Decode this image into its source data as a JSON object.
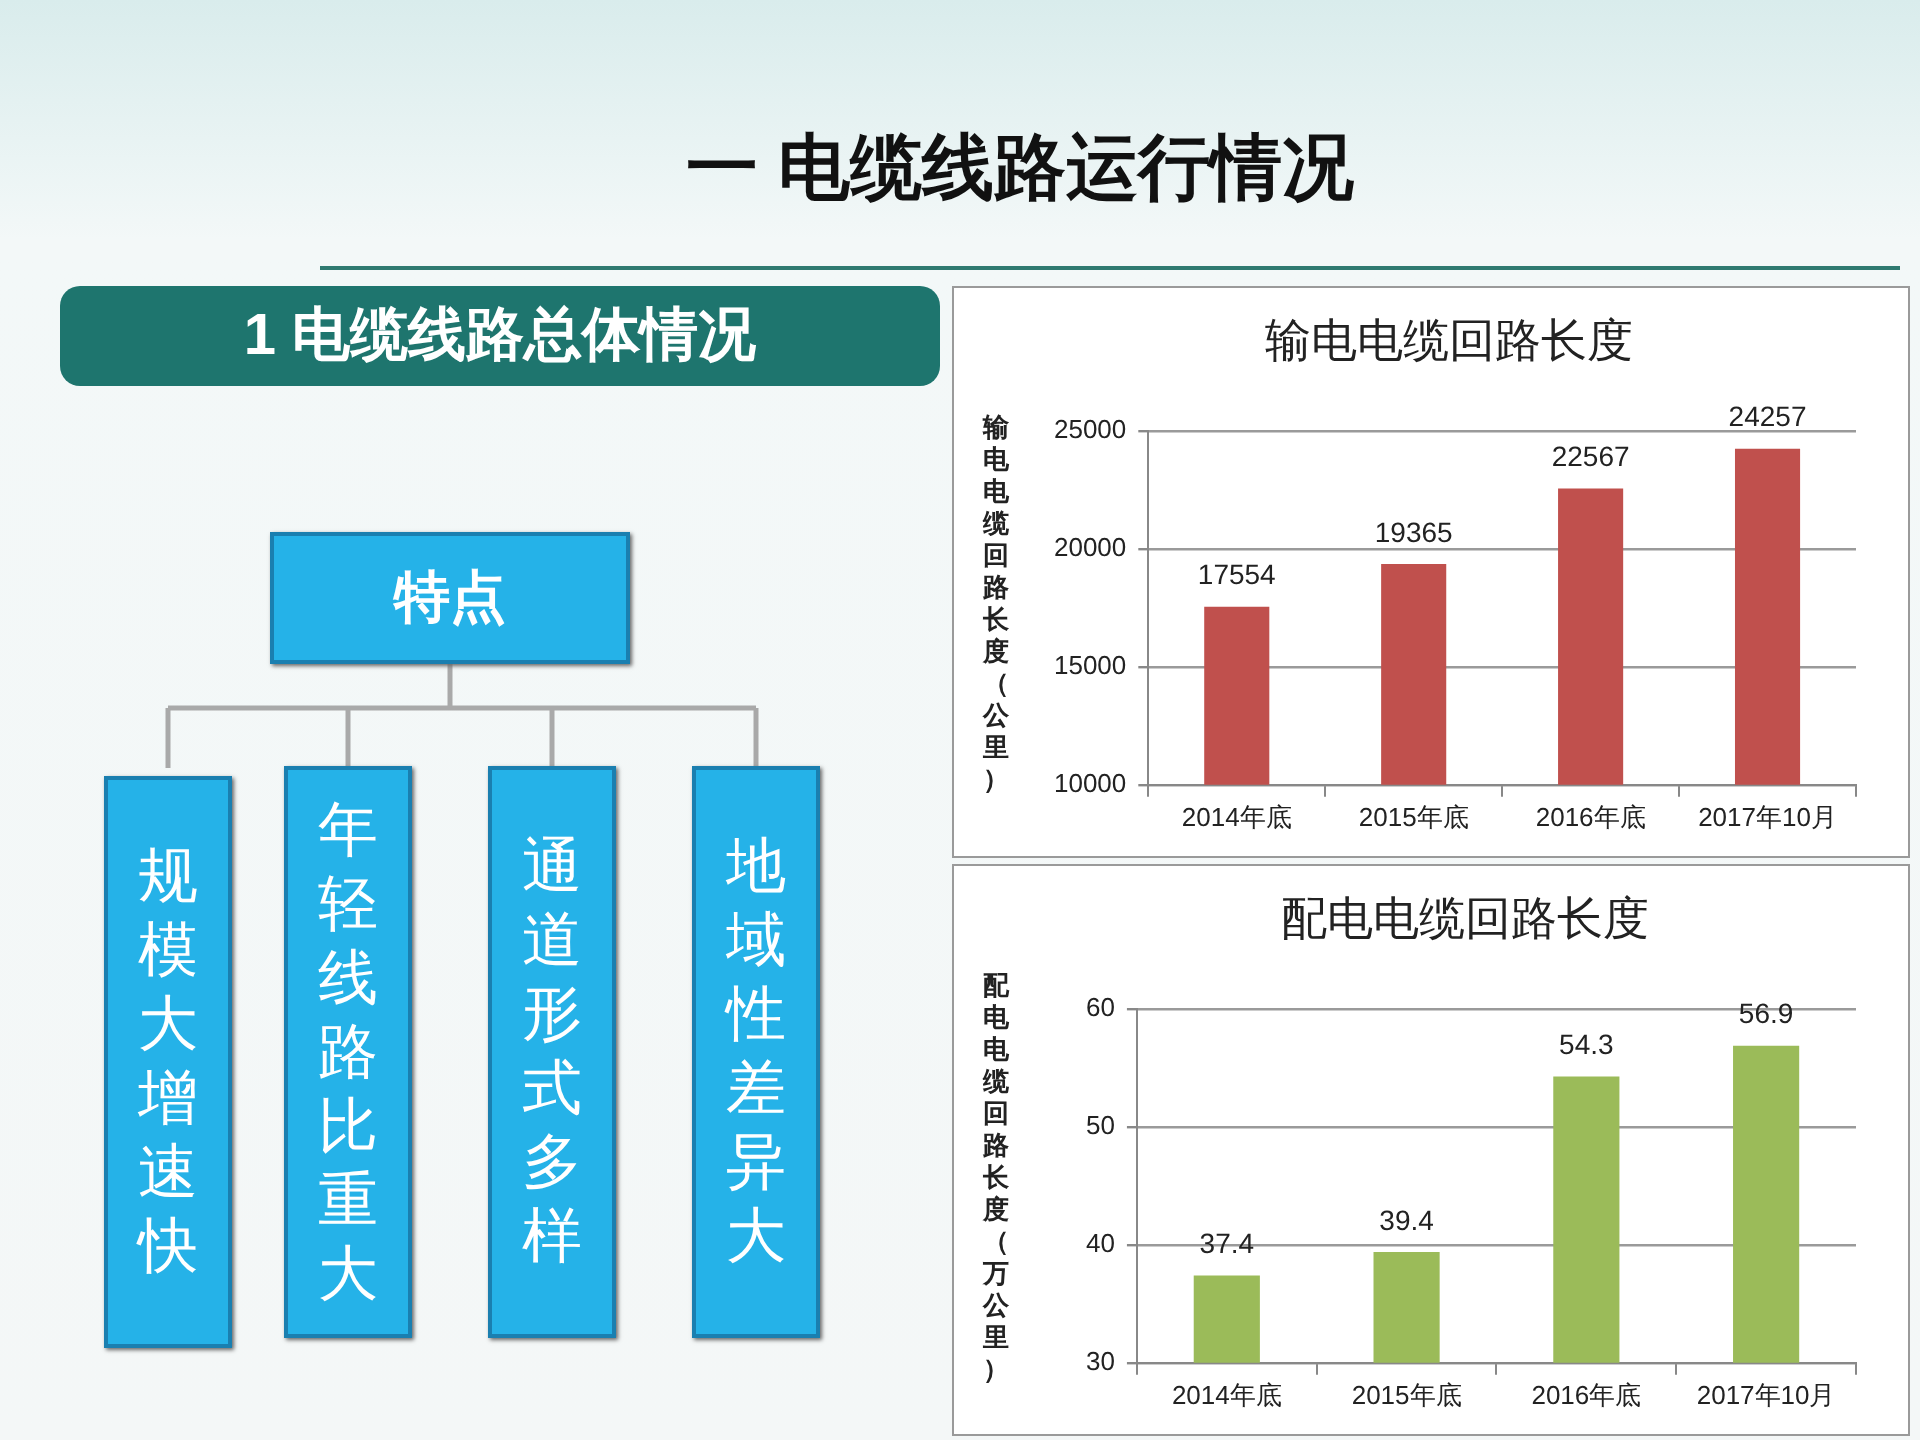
{
  "chart_data": [
    {
      "type": "other",
      "title": "一 电缆线路运行情况",
      "subtitle": "1 电缆线路总体情况",
      "annotations": [
        "特点",
        "规模大增速快",
        "年轻线路比重大",
        "通道形式多样",
        "地域性差异大"
      ]
    },
    {
      "type": "bar",
      "title": "输电电缆回路长度",
      "ylabel": "输电电缆回路长度（公里）",
      "categories": [
        "2014年底",
        "2015年底",
        "2016年底",
        "2017年10月"
      ],
      "values": [
        17554,
        19365,
        22567,
        24257
      ],
      "color": "#c0504d",
      "ylim": [
        10000,
        25000
      ],
      "yticks": [
        10000,
        15000,
        20000,
        25000
      ],
      "grid": "y",
      "data_labels": true
    },
    {
      "type": "bar",
      "title": "配电电缆回路长度",
      "ylabel": "配电电缆回路长度（万公里）",
      "categories": [
        "2014年底",
        "2015年底",
        "2016年底",
        "2017年10月"
      ],
      "values": [
        37.4,
        39.4,
        54.3,
        56.9
      ],
      "color": "#9bbb59",
      "ylim": [
        30,
        60
      ],
      "yticks": [
        30,
        40,
        50,
        60
      ],
      "grid": "y",
      "data_labels": true
    }
  ]
}
